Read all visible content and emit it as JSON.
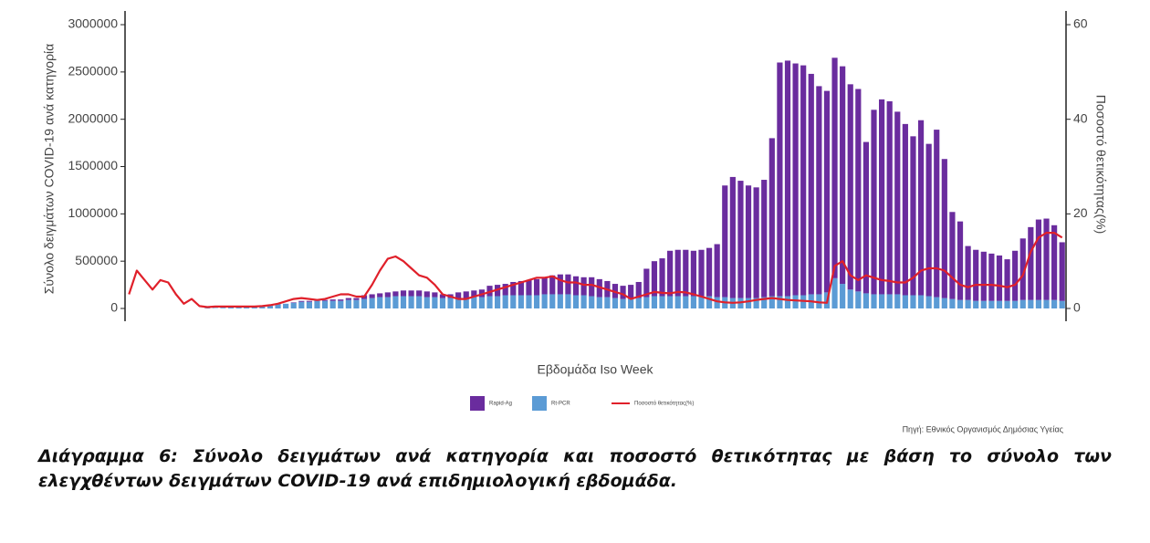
{
  "chart_data": {
    "type": "bar",
    "y_label": "Σύνολο δειγμάτων COVID-19 ανά κατηγορία",
    "y2_label": "Ποσοστό θετικότητας(%)",
    "x_label": "Εβδομάδα Iso Week",
    "source": "Πηγή: Εθνικός Οργανισμός Δημόσιας Υγείας",
    "caption": "Διάγραμμα 6:  Σύνολο δειγμάτων ανά κατηγορία και ποσοστό θετικότητας με βάση το σύνολο των ελεγχθέντων δειγμάτων COVID-19 ανά επιδημιολογική εβδομάδα.",
    "stacked": true,
    "legend": "bottom",
    "categories": [
      null,
      null,
      null,
      null,
      null,
      null,
      null,
      null,
      null,
      null,
      null,
      null,
      null,
      null,
      null,
      null,
      null,
      null,
      null,
      null,
      null,
      null,
      null,
      null,
      null,
      null,
      null,
      null,
      null,
      null,
      null,
      null,
      null,
      null,
      null,
      null,
      null,
      null,
      null,
      null,
      null,
      null,
      null,
      null,
      null,
      null,
      null,
      null,
      null,
      null,
      null,
      null,
      null,
      null,
      null,
      null,
      null,
      null,
      null,
      null,
      null,
      null,
      null,
      null,
      null,
      null,
      null,
      null,
      null,
      null,
      null,
      null,
      null,
      null,
      null,
      null,
      null,
      null,
      null,
      null,
      null,
      null,
      null,
      null,
      null,
      null,
      null,
      null,
      null,
      null,
      null,
      null,
      null,
      null,
      null,
      null,
      null,
      null,
      null,
      null,
      null,
      null,
      null,
      null,
      null,
      null,
      null,
      null,
      null,
      null,
      null,
      null,
      null,
      null,
      null,
      null,
      null,
      null,
      null,
      null
    ],
    "series": [
      {
        "name": "Rt-PCR",
        "color": "#5b9bd5",
        "values": [
          0,
          0,
          0,
          0,
          0,
          0,
          0,
          0,
          0,
          0,
          5000,
          5000,
          8000,
          10000,
          10000,
          15000,
          20000,
          30000,
          40000,
          50000,
          50000,
          60000,
          70000,
          70000,
          80000,
          80000,
          80000,
          80000,
          90000,
          90000,
          100000,
          110000,
          120000,
          120000,
          130000,
          130000,
          130000,
          130000,
          120000,
          120000,
          110000,
          110000,
          110000,
          110000,
          120000,
          120000,
          130000,
          130000,
          140000,
          140000,
          140000,
          140000,
          140000,
          150000,
          150000,
          150000,
          150000,
          140000,
          140000,
          130000,
          120000,
          120000,
          110000,
          100000,
          100000,
          110000,
          120000,
          130000,
          130000,
          130000,
          130000,
          130000,
          130000,
          130000,
          130000,
          120000,
          120000,
          110000,
          110000,
          110000,
          110000,
          120000,
          130000,
          130000,
          130000,
          140000,
          140000,
          150000,
          150000,
          170000,
          320000,
          260000,
          200000,
          180000,
          160000,
          150000,
          150000,
          150000,
          150000,
          140000,
          140000,
          140000,
          130000,
          120000,
          110000,
          100000,
          90000,
          90000,
          80000,
          80000,
          80000,
          80000,
          80000,
          80000,
          90000,
          90000,
          90000,
          90000,
          90000,
          80000
        ]
      },
      {
        "name": "Rapid-Ag",
        "color": "#6a2c9e",
        "values": [
          0,
          0,
          0,
          0,
          0,
          0,
          0,
          0,
          0,
          0,
          0,
          0,
          0,
          0,
          0,
          0,
          0,
          0,
          0,
          0,
          0,
          5000,
          10000,
          10000,
          10000,
          10000,
          15000,
          15000,
          20000,
          20000,
          40000,
          40000,
          40000,
          50000,
          50000,
          60000,
          60000,
          60000,
          60000,
          50000,
          40000,
          40000,
          60000,
          70000,
          70000,
          80000,
          110000,
          120000,
          120000,
          140000,
          150000,
          160000,
          170000,
          180000,
          200000,
          210000,
          210000,
          200000,
          190000,
          200000,
          190000,
          170000,
          150000,
          140000,
          150000,
          170000,
          300000,
          370000,
          400000,
          480000,
          490000,
          490000,
          480000,
          490000,
          510000,
          560000,
          1180000,
          1280000,
          1240000,
          1190000,
          1170000,
          1240000,
          1670000,
          2470000,
          2490000,
          2450000,
          2430000,
          2330000,
          2200000,
          2130000,
          2330000,
          2300000,
          2170000,
          2140000,
          1600000,
          1950000,
          2060000,
          2040000,
          1930000,
          1810000,
          1680000,
          1850000,
          1610000,
          1770000,
          1470000,
          920000,
          830000,
          570000,
          540000,
          520000,
          500000,
          480000,
          440000,
          530000,
          650000,
          770000,
          850000,
          860000,
          790000,
          620000
        ]
      },
      {
        "name": "Ποσοστό θετικότητας(%)",
        "color": "#e0202a",
        "axis": "y2",
        "type": "line",
        "values": [
          3,
          8,
          6,
          4,
          6,
          5.5,
          3,
          1,
          2,
          0.5,
          0.3,
          0.4,
          0.4,
          0.4,
          0.4,
          0.4,
          0.4,
          0.5,
          0.7,
          1,
          1.5,
          2,
          2.2,
          2,
          1.8,
          2,
          2.5,
          3,
          3,
          2.5,
          2.5,
          5,
          8,
          10.5,
          11,
          10,
          8.5,
          7,
          6.5,
          5,
          3,
          2.5,
          2,
          2,
          2.5,
          3,
          3.5,
          4,
          4.5,
          5,
          5.5,
          6,
          6.5,
          6.5,
          6.8,
          6,
          5.5,
          5.5,
          5,
          5,
          4.5,
          4,
          3.5,
          3,
          2,
          2.5,
          3,
          3.5,
          3.3,
          3.2,
          3.5,
          3.4,
          3,
          2.5,
          2,
          1.5,
          1.3,
          1.2,
          1.3,
          1.5,
          1.8,
          2,
          2.2,
          2,
          1.8,
          1.7,
          1.6,
          1.5,
          1.3,
          1.2,
          9,
          10,
          7,
          6,
          7,
          6.5,
          6,
          5.8,
          5.5,
          5.5,
          6.5,
          8,
          8.5,
          8.5,
          8,
          6.5,
          5,
          4.5,
          5,
          5,
          5,
          4.8,
          4.5,
          5,
          7,
          12,
          15,
          16,
          16,
          15
        ]
      }
    ],
    "ylim": [
      -135000,
      3145000
    ],
    "yticks": [
      0,
      500000,
      1000000,
      1500000,
      2000000,
      2500000,
      3000000
    ],
    "y2lim": [
      -2.7,
      62.9
    ],
    "y2ticks": [
      0,
      20,
      40,
      60
    ]
  }
}
